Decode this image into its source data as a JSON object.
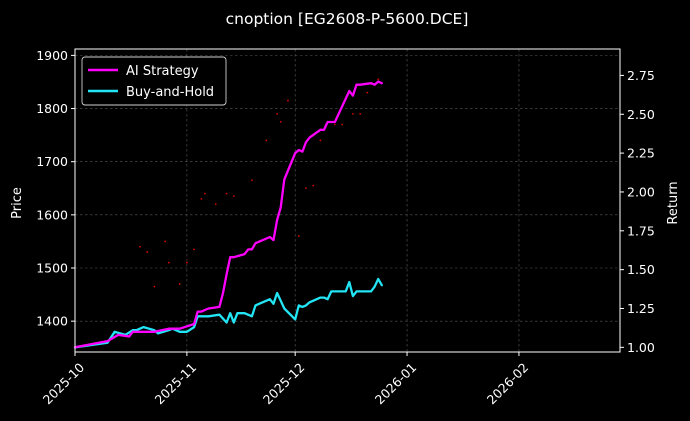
{
  "chart_data": {
    "type": "line",
    "title": "cnoption [EG2608-P-5600.DCE]",
    "xlabel": "",
    "ylabel": "Price",
    "ylabel_right": "Return",
    "grid": true,
    "legend_position": "top-left",
    "x_ticks": [
      "2025-10",
      "2025-11",
      "2025-12",
      "2026-01",
      "2026-02"
    ],
    "xlim": [
      "2025-10-01",
      "2026-03-01"
    ],
    "y_left_ticks": [
      1400,
      1500,
      1600,
      1700,
      1800,
      1900
    ],
    "ylim_left": [
      1342,
      1912
    ],
    "y_right_ticks": [
      "1.00",
      "1.25",
      "1.50",
      "1.75",
      "2.00",
      "2.25",
      "2.50",
      "2.75"
    ],
    "ylim_right": [
      0.97,
      2.92
    ],
    "colors": {
      "ai": "#ff00ff",
      "buyhold": "#22e5f5",
      "price": "#ff0000",
      "grid": "#5a5a5a"
    },
    "series": [
      {
        "name": "AI Strategy",
        "axis": "right",
        "x": [
          "2025-10-01",
          "2025-10-10",
          "2025-10-13",
          "2025-10-16",
          "2025-10-17",
          "2025-10-20",
          "2025-10-23",
          "2025-10-27",
          "2025-10-30",
          "2025-11-03",
          "2025-11-04",
          "2025-11-05",
          "2025-11-06",
          "2025-11-07",
          "2025-11-10",
          "2025-11-11",
          "2025-11-12",
          "2025-11-13",
          "2025-11-14",
          "2025-11-17",
          "2025-11-18",
          "2025-11-19",
          "2025-11-20",
          "2025-11-21",
          "2025-11-24",
          "2025-11-25",
          "2025-11-26",
          "2025-11-27",
          "2025-11-28",
          "2025-12-01",
          "2025-12-02",
          "2025-12-03",
          "2025-12-04",
          "2025-12-05",
          "2025-12-08",
          "2025-12-09",
          "2025-12-10",
          "2025-12-11",
          "2025-12-12",
          "2025-12-15",
          "2025-12-16",
          "2025-12-17",
          "2025-12-18",
          "2025-12-19",
          "2025-12-22",
          "2025-12-23",
          "2025-12-24",
          "2025-12-25"
        ],
        "values": [
          1.0,
          1.04,
          1.08,
          1.07,
          1.1,
          1.1,
          1.1,
          1.12,
          1.12,
          1.15,
          1.23,
          1.23,
          1.24,
          1.25,
          1.26,
          1.35,
          1.47,
          1.58,
          1.58,
          1.6,
          1.63,
          1.63,
          1.67,
          1.68,
          1.71,
          1.69,
          1.82,
          1.9,
          2.08,
          2.25,
          2.27,
          2.26,
          2.32,
          2.35,
          2.4,
          2.4,
          2.45,
          2.45,
          2.45,
          2.6,
          2.65,
          2.62,
          2.69,
          2.69,
          2.7,
          2.69,
          2.71,
          2.7
        ]
      },
      {
        "name": "Buy-and-Hold",
        "axis": "right",
        "x": [
          "2025-10-01",
          "2025-10-10",
          "2025-10-12",
          "2025-10-15",
          "2025-10-17",
          "2025-10-18",
          "2025-10-20",
          "2025-10-23",
          "2025-10-24",
          "2025-10-27",
          "2025-10-28",
          "2025-10-30",
          "2025-11-01",
          "2025-11-03",
          "2025-11-04",
          "2025-11-06",
          "2025-11-07",
          "2025-11-10",
          "2025-11-12",
          "2025-11-13",
          "2025-11-14",
          "2025-11-15",
          "2025-11-17",
          "2025-11-19",
          "2025-11-20",
          "2025-11-21",
          "2025-11-24",
          "2025-11-25",
          "2025-11-26",
          "2025-11-27",
          "2025-11-28",
          "2025-12-01",
          "2025-12-02",
          "2025-12-03",
          "2025-12-04",
          "2025-12-05",
          "2025-12-08",
          "2025-12-09",
          "2025-12-10",
          "2025-12-11",
          "2025-12-12",
          "2025-12-15",
          "2025-12-16",
          "2025-12-17",
          "2025-12-18",
          "2025-12-19",
          "2025-12-22",
          "2025-12-23",
          "2025-12-24",
          "2025-12-25"
        ],
        "values": [
          1.0,
          1.03,
          1.1,
          1.08,
          1.11,
          1.11,
          1.13,
          1.11,
          1.09,
          1.11,
          1.12,
          1.1,
          1.1,
          1.13,
          1.2,
          1.2,
          1.2,
          1.21,
          1.16,
          1.22,
          1.16,
          1.22,
          1.22,
          1.2,
          1.27,
          1.28,
          1.31,
          1.28,
          1.35,
          1.3,
          1.25,
          1.18,
          1.27,
          1.26,
          1.27,
          1.29,
          1.32,
          1.32,
          1.31,
          1.36,
          1.36,
          1.36,
          1.42,
          1.33,
          1.36,
          1.36,
          1.36,
          1.39,
          1.44,
          1.4
        ]
      },
      {
        "name": "Price",
        "axis": "left",
        "x": [
          "2025-10-19",
          "2025-10-21",
          "2025-10-23",
          "2025-10-26",
          "2025-10-27",
          "2025-10-30",
          "2025-11-01",
          "2025-11-03",
          "2025-11-05",
          "2025-11-06",
          "2025-11-09",
          "2025-11-12",
          "2025-11-14",
          "2025-11-19",
          "2025-11-23",
          "2025-11-26",
          "2025-11-27",
          "2025-11-29",
          "2025-12-02",
          "2025-12-04",
          "2025-12-06",
          "2025-12-08",
          "2025-12-12",
          "2025-12-14",
          "2025-12-17",
          "2025-12-19",
          "2025-12-21",
          "2025-12-24"
        ],
        "values": [
          1540,
          1530,
          1465,
          1550,
          1510,
          1470,
          1510,
          1535,
          1630,
          1640,
          1620,
          1640,
          1635,
          1665,
          1740,
          1790,
          1775,
          1815,
          1560,
          1650,
          1655,
          1740,
          1770,
          1770,
          1790,
          1790,
          1830,
          1855
        ]
      }
    ]
  }
}
